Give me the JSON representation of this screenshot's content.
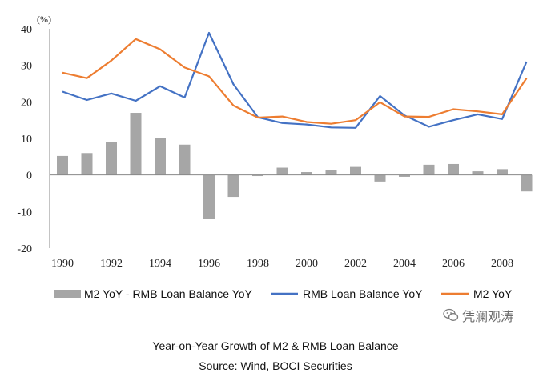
{
  "chart_data": {
    "type": "bar",
    "unit_label": "(%)",
    "x": [
      1990,
      1991,
      1992,
      1993,
      1994,
      1995,
      1996,
      1997,
      1998,
      1999,
      2000,
      2001,
      2002,
      2003,
      2004,
      2005,
      2006,
      2007,
      2008,
      2009
    ],
    "x_tick_labels": [
      "1990",
      "1992",
      "1994",
      "1996",
      "1998",
      "2000",
      "2002",
      "2004",
      "2006",
      "2008"
    ],
    "ylim": [
      -20,
      40
    ],
    "y_tick_labels": [
      "40",
      "30",
      "20",
      "10",
      "0",
      "-10",
      "-20"
    ],
    "y_ticks": [
      40,
      30,
      20,
      10,
      0,
      -10,
      -20
    ],
    "series": [
      {
        "name": "M2 YoY - RMB Loan Balance YoY",
        "type": "bar",
        "color": "#a6a6a6",
        "values": [
          5.2,
          6.0,
          9.0,
          17.0,
          10.2,
          8.3,
          -12.0,
          -6.0,
          -0.3,
          2.0,
          0.8,
          1.3,
          2.2,
          -1.8,
          -0.5,
          2.8,
          3.0,
          1.0,
          1.6,
          -4.5
        ]
      },
      {
        "name": "RMB Loan Balance YoY",
        "type": "line",
        "color": "#4472c4",
        "values": [
          22.8,
          20.5,
          22.3,
          20.3,
          24.3,
          21.2,
          38.9,
          24.8,
          15.8,
          14.2,
          13.8,
          13.0,
          12.9,
          21.6,
          16.3,
          13.2,
          15.0,
          16.6,
          15.3,
          31.0
        ]
      },
      {
        "name": "M2 YoY",
        "type": "line",
        "color": "#ed7d31",
        "values": [
          28.0,
          26.5,
          31.3,
          37.2,
          34.4,
          29.4,
          27.0,
          19.0,
          15.7,
          16.0,
          14.5,
          14.0,
          15.0,
          19.9,
          16.0,
          15.9,
          18.0,
          17.4,
          16.6,
          26.5
        ]
      }
    ]
  },
  "caption": {
    "title": "Year-on-Year Growth of M2 & RMB Loan Balance",
    "source": "Source: Wind, BOCI Securities"
  },
  "watermark": {
    "text": "凭澜观涛",
    "icon": "wechat-icon"
  }
}
